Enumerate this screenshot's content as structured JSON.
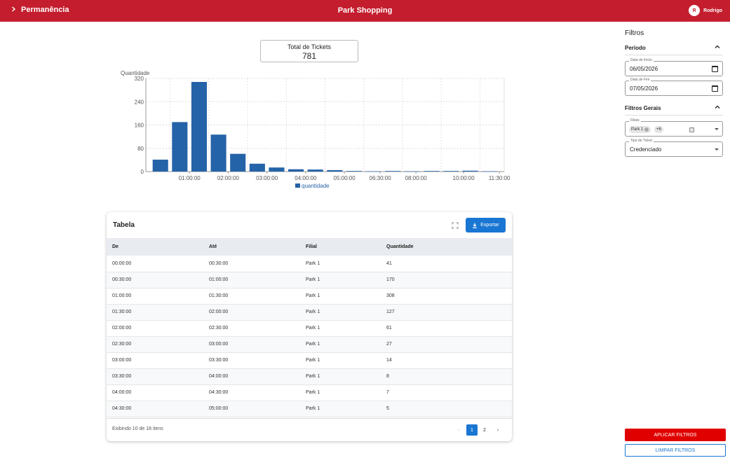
{
  "header": {
    "breadcrumb": "Permanência",
    "title": "Park Shopping",
    "user_initial": "R",
    "user_name": "Rodrigo",
    "bg_color": "#c41e2e"
  },
  "summary": {
    "label": "Total de Tickets",
    "value": "781"
  },
  "chart_data": {
    "type": "bar",
    "ylabel": "Quantidade",
    "ylim": [
      0,
      320
    ],
    "yticks": [
      "0",
      "80",
      "160",
      "240",
      "320"
    ],
    "xtick_labels": [
      "01:00:00",
      "02:00:00",
      "03:00:00",
      "04:00:00",
      "05:00:00",
      "06:30:00",
      "08:00:00",
      "10:00:00",
      "11:30:00"
    ],
    "series": [
      {
        "name": "quantidade",
        "color": "#2563a8",
        "values": [
          41,
          170,
          308,
          127,
          61,
          27,
          14,
          8,
          7,
          5,
          2,
          1,
          2,
          1,
          2,
          2,
          3,
          1
        ]
      }
    ],
    "grid": true,
    "legend": "bottom"
  },
  "table": {
    "title": "Tabela",
    "export_label": "Exportar",
    "columns": [
      "De",
      "Até",
      "Filial",
      "Quantidade"
    ],
    "rows": [
      [
        "00:00:00",
        "00:30:00",
        "Park 1",
        "41"
      ],
      [
        "00:30:00",
        "01:00:00",
        "Park 1",
        "170"
      ],
      [
        "01:00:00",
        "01:30:00",
        "Park 1",
        "308"
      ],
      [
        "01:30:00",
        "02:00:00",
        "Park 1",
        "127"
      ],
      [
        "02:00:00",
        "02:30:00",
        "Park 1",
        "61"
      ],
      [
        "02:30:00",
        "03:00:00",
        "Park 1",
        "27"
      ],
      [
        "03:00:00",
        "03:30:00",
        "Park 1",
        "14"
      ],
      [
        "03:30:00",
        "04:00:00",
        "Park 1",
        "8"
      ],
      [
        "04:00:00",
        "04:30:00",
        "Park 1",
        "7"
      ],
      [
        "04:30:00",
        "05:00:00",
        "Park 1",
        "5"
      ]
    ],
    "footer_info": "Exibindo 10 de 18 itens",
    "pages": [
      "1",
      "2"
    ],
    "current_page": "1",
    "prev_icon": "‹",
    "next_icon": "›"
  },
  "filters": {
    "title": "Filtros",
    "period": {
      "label": "Período",
      "start_label": "Data de Início",
      "start_value": "06/05/2026",
      "end_label": "Data de Fim",
      "end_value": "07/05/2026"
    },
    "general": {
      "label": "Filtros Gerais",
      "branch_label": "Filiais",
      "branch_chip": "Park 1",
      "branch_more": "+6",
      "ticket_type_label": "Tipo de Ticket",
      "ticket_type_value": "Credenciado"
    },
    "apply_label": "APLICAR FILTROS",
    "clear_label": "LIMPAR FILTROS"
  }
}
